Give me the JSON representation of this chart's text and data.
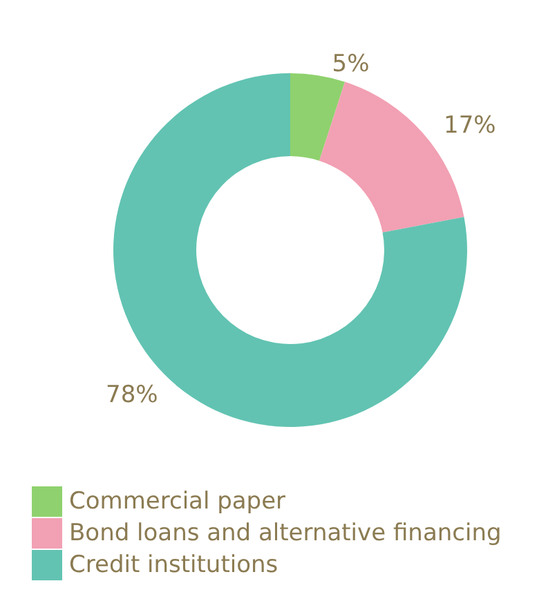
{
  "chart_data": {
    "type": "donut",
    "categories": [
      "Commercial paper",
      "Bond loans and alternative financing",
      "Credit institutions"
    ],
    "values": [
      5,
      17,
      78
    ],
    "colors": [
      "#8fd16e",
      "#f2a0b3",
      "#62c3b2"
    ],
    "value_labels": [
      "5%",
      "17%",
      "78%"
    ],
    "legend": "bottom left"
  }
}
